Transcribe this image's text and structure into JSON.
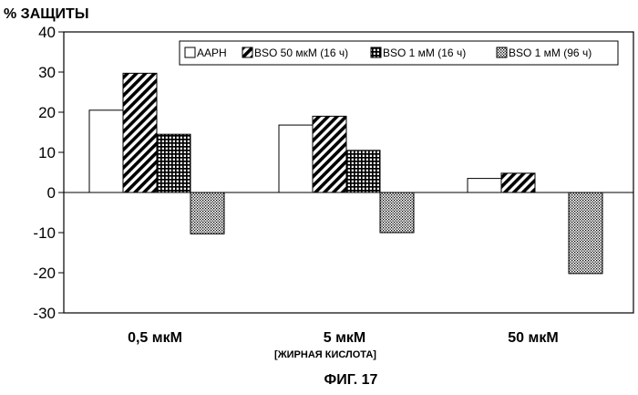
{
  "chart_data": {
    "type": "bar",
    "ylabel": "% ЗАЩИТЫ",
    "xlabel": "[ЖИРНАЯ КИСЛОТА]",
    "caption": "ФИГ. 17",
    "ylim": [
      -30,
      40
    ],
    "yticks": [
      40,
      30,
      20,
      10,
      0,
      -10,
      -20,
      -30
    ],
    "ytick_labels": [
      "40",
      "30",
      "20",
      "10",
      "0",
      "-10",
      "-20",
      "-30"
    ],
    "categories": [
      "0,5 мкМ",
      "5 мкМ",
      "50 мкМ"
    ],
    "legend_position": "top-right",
    "grid": false,
    "series": [
      {
        "name": "AAPH",
        "pattern": "white",
        "values": [
          20.5,
          16.8,
          3.5
        ]
      },
      {
        "name": "BSO 50 мкМ (16 ч)",
        "pattern": "diagonal-stripes",
        "values": [
          29.7,
          19.0,
          4.8
        ]
      },
      {
        "name": "BSO 1 мМ (16 ч)",
        "pattern": "crosshatch",
        "values": [
          14.5,
          10.5,
          null
        ]
      },
      {
        "name": "BSO 1 мМ (96 ч)",
        "pattern": "dotted",
        "values": [
          -10.3,
          -10.0,
          -20.2
        ]
      }
    ]
  }
}
